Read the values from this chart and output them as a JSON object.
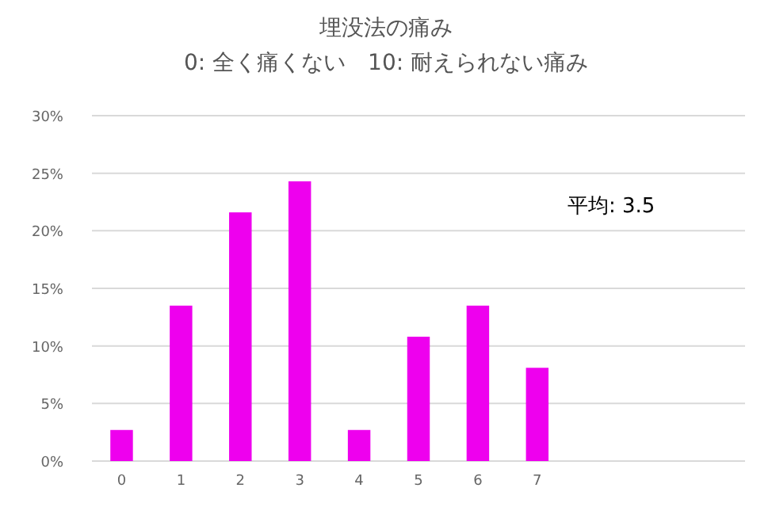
{
  "chart_data": {
    "type": "bar",
    "title": "埋没法の痛み",
    "subtitle": "0: 全く痛くない　10: 耐えられない痛み",
    "categories": [
      "0",
      "1",
      "2",
      "3",
      "4",
      "5",
      "6",
      "7",
      null,
      null,
      null
    ],
    "values": [
      2.7,
      13.5,
      21.6,
      24.3,
      2.7,
      10.8,
      13.5,
      8.1,
      null,
      null,
      null
    ],
    "color": "#ee00ee",
    "ylim": [
      0,
      30
    ],
    "yticks": [
      {
        "value": 0,
        "label": "0%"
      },
      {
        "value": 5,
        "label": "5%"
      },
      {
        "value": 10,
        "label": "10%"
      },
      {
        "value": 15,
        "label": "15%"
      },
      {
        "value": 20,
        "label": "20%"
      },
      {
        "value": 25,
        "label": "25%"
      },
      {
        "value": 30,
        "label": "30%"
      }
    ],
    "grid": "y",
    "annotations": [
      "平均: 3.5"
    ]
  }
}
